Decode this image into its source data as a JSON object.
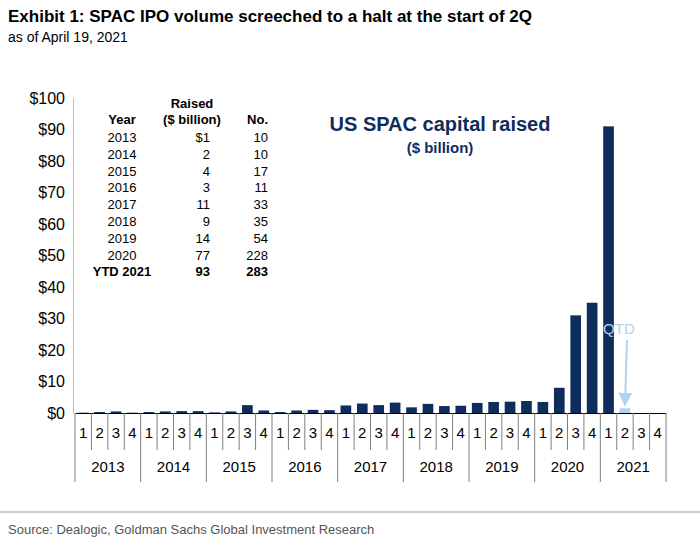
{
  "chart_data": {
    "type": "bar",
    "title": "Exhibit 1: SPAC IPO volume screeched to a halt at the start of 2Q",
    "subtitle": "as of April 19, 2021",
    "source": "Source: Dealogic, Goldman Sachs Global Investment Research",
    "categories": [
      "1",
      "2",
      "3",
      "4",
      "1",
      "2",
      "3",
      "4",
      "1",
      "2",
      "3",
      "4",
      "1",
      "2",
      "3",
      "4",
      "1",
      "2",
      "3",
      "4",
      "1",
      "2",
      "3",
      "4",
      "1",
      "2",
      "3",
      "4",
      "1",
      "2",
      "3",
      "4",
      "1",
      "2",
      "3",
      "4"
    ],
    "year_groups": [
      "2013",
      "2014",
      "2015",
      "2016",
      "2017",
      "2018",
      "2019",
      "2020",
      "2021"
    ],
    "values": [
      0.1,
      0.3,
      0.5,
      0.1,
      0.3,
      0.5,
      0.6,
      0.6,
      0.2,
      0.5,
      2.5,
      0.8,
      0.3,
      0.8,
      1.0,
      0.9,
      2.4,
      3.0,
      2.5,
      3.3,
      1.8,
      2.9,
      2.2,
      2.3,
      3.2,
      3.5,
      3.6,
      3.8,
      3.5,
      8.0,
      31,
      35,
      91,
      1.5,
      null,
      null
    ],
    "colors": [
      "#0f2d5c",
      "#0f2d5c",
      "#0f2d5c",
      "#0f2d5c",
      "#0f2d5c",
      "#0f2d5c",
      "#0f2d5c",
      "#0f2d5c",
      "#0f2d5c",
      "#0f2d5c",
      "#0f2d5c",
      "#0f2d5c",
      "#0f2d5c",
      "#0f2d5c",
      "#0f2d5c",
      "#0f2d5c",
      "#0f2d5c",
      "#0f2d5c",
      "#0f2d5c",
      "#0f2d5c",
      "#0f2d5c",
      "#0f2d5c",
      "#0f2d5c",
      "#0f2d5c",
      "#0f2d5c",
      "#0f2d5c",
      "#0f2d5c",
      "#0f2d5c",
      "#0f2d5c",
      "#0f2d5c",
      "#0f2d5c",
      "#0f2d5c",
      "#0f2d5c",
      "#b4d2ee",
      "#b4d2ee",
      "#b4d2ee"
    ],
    "ylim": [
      0,
      100
    ],
    "yticks": [
      {
        "value": 0,
        "label": "$0"
      },
      {
        "value": 10,
        "label": "$10"
      },
      {
        "value": 20,
        "label": "$20"
      },
      {
        "value": 30,
        "label": "$30"
      },
      {
        "value": 40,
        "label": "$40"
      },
      {
        "value": 50,
        "label": "$50"
      },
      {
        "value": 60,
        "label": "$60"
      },
      {
        "value": 70,
        "label": "$70"
      },
      {
        "value": 80,
        "label": "$80"
      },
      {
        "value": 90,
        "label": "$90"
      },
      {
        "value": 100,
        "label": "$100"
      }
    ],
    "grid": false,
    "data_labels": false,
    "annotations": {
      "label": "US SPAC capital raised",
      "unit": "($ billion)",
      "qtd": "QTD"
    },
    "table": {
      "columns": [
        [
          "Year"
        ],
        [
          "Raised",
          "($ billion)"
        ],
        [
          "No."
        ]
      ],
      "rows": [
        [
          "2013",
          "$1",
          "10"
        ],
        [
          "2014",
          "2",
          "10"
        ],
        [
          "2015",
          "4",
          "17"
        ],
        [
          "2016",
          "3",
          "11"
        ],
        [
          "2017",
          "11",
          "33"
        ],
        [
          "2018",
          "9",
          "35"
        ],
        [
          "2019",
          "14",
          "54"
        ],
        [
          "2020",
          "77",
          "228"
        ],
        [
          "YTD 2021",
          "93",
          "283"
        ]
      ]
    }
  }
}
